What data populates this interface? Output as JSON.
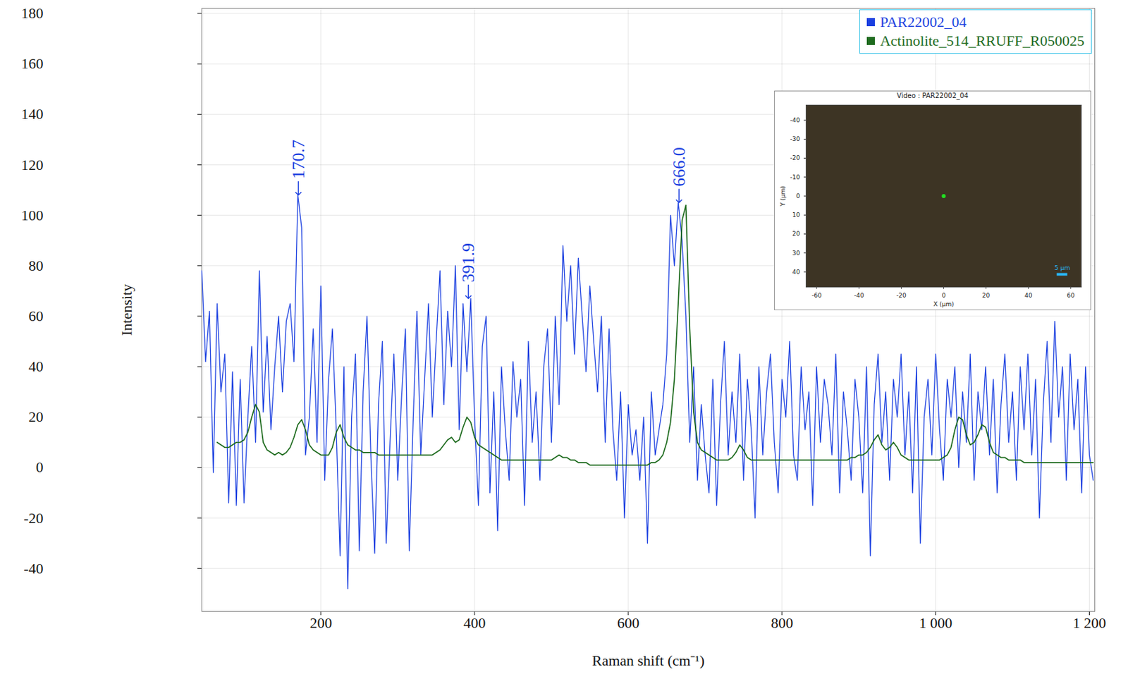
{
  "chart_data": [
    {
      "type": "line",
      "xlabel": "Raman shift (cm⁻¹)",
      "ylabel": "Intensity",
      "x": [
        45,
        50,
        55,
        60,
        65,
        70,
        75,
        80,
        85,
        90,
        95,
        100,
        105,
        110,
        115,
        120,
        125,
        130,
        135,
        140,
        145,
        150,
        155,
        160,
        165,
        170,
        175,
        180,
        185,
        190,
        195,
        200,
        205,
        210,
        215,
        220,
        225,
        230,
        235,
        240,
        245,
        250,
        255,
        260,
        265,
        270,
        275,
        280,
        285,
        290,
        295,
        300,
        305,
        310,
        315,
        320,
        325,
        330,
        335,
        340,
        345,
        350,
        355,
        360,
        365,
        370,
        375,
        380,
        385,
        390,
        395,
        400,
        405,
        410,
        415,
        420,
        425,
        430,
        435,
        440,
        445,
        450,
        455,
        460,
        465,
        470,
        475,
        480,
        485,
        490,
        495,
        500,
        505,
        510,
        515,
        520,
        525,
        530,
        535,
        540,
        545,
        550,
        555,
        560,
        565,
        570,
        575,
        580,
        585,
        590,
        595,
        600,
        605,
        610,
        615,
        620,
        625,
        630,
        635,
        640,
        645,
        650,
        655,
        660,
        665,
        670,
        675,
        680,
        685,
        690,
        695,
        700,
        705,
        710,
        715,
        720,
        725,
        730,
        735,
        740,
        745,
        750,
        755,
        760,
        765,
        770,
        775,
        780,
        785,
        790,
        795,
        800,
        805,
        810,
        815,
        820,
        825,
        830,
        835,
        840,
        845,
        850,
        855,
        860,
        865,
        870,
        875,
        880,
        885,
        890,
        895,
        900,
        905,
        910,
        915,
        920,
        925,
        930,
        935,
        940,
        945,
        950,
        955,
        960,
        965,
        970,
        975,
        980,
        985,
        990,
        995,
        1000,
        1005,
        1010,
        1015,
        1020,
        1025,
        1030,
        1035,
        1040,
        1045,
        1050,
        1055,
        1060,
        1065,
        1070,
        1075,
        1080,
        1085,
        1090,
        1095,
        1100,
        1105,
        1110,
        1115,
        1120,
        1125,
        1130,
        1135,
        1140,
        1145,
        1150,
        1155,
        1160,
        1165,
        1170,
        1175,
        1180,
        1185,
        1190,
        1195,
        1200,
        1205
      ],
      "series": [
        {
          "name": "PAR22002_04",
          "color": "#1a3fe0",
          "values": [
            78,
            42,
            62,
            -2,
            65,
            30,
            45,
            -14,
            38,
            -15,
            35,
            -14,
            20,
            48,
            10,
            78,
            22,
            52,
            15,
            40,
            60,
            30,
            58,
            65,
            42,
            108,
            95,
            5,
            20,
            55,
            10,
            72,
            -5,
            35,
            55,
            15,
            -35,
            40,
            -48,
            20,
            45,
            -33,
            30,
            60,
            5,
            -34,
            25,
            50,
            -30,
            10,
            45,
            -5,
            28,
            55,
            -33,
            18,
            62,
            5,
            35,
            65,
            20,
            50,
            78,
            25,
            62,
            40,
            80,
            15,
            65,
            38,
            67,
            20,
            -15,
            48,
            60,
            -10,
            30,
            -25,
            40,
            15,
            -5,
            42,
            20,
            35,
            -15,
            50,
            10,
            30,
            -5,
            40,
            55,
            10,
            60,
            25,
            88,
            58,
            80,
            45,
            83,
            60,
            38,
            72,
            50,
            30,
            60,
            10,
            55,
            15,
            -5,
            30,
            -20,
            25,
            5,
            15,
            -5,
            20,
            -30,
            30,
            5,
            15,
            25,
            45,
            100,
            80,
            105,
            90,
            60,
            10,
            40,
            -5,
            25,
            5,
            -10,
            35,
            -15,
            25,
            50,
            5,
            30,
            10,
            45,
            -5,
            35,
            15,
            -20,
            40,
            5,
            30,
            45,
            10,
            -10,
            35,
            20,
            50,
            5,
            -5,
            40,
            15,
            30,
            -15,
            40,
            10,
            35,
            25,
            5,
            45,
            -10,
            30,
            15,
            -5,
            35,
            20,
            -10,
            40,
            -35,
            25,
            45,
            10,
            30,
            -5,
            35,
            20,
            45,
            5,
            30,
            -10,
            40,
            -30,
            20,
            35,
            5,
            45,
            15,
            -5,
            35,
            20,
            40,
            0,
            30,
            10,
            45,
            -5,
            30,
            15,
            40,
            5,
            35,
            -10,
            25,
            45,
            10,
            30,
            -5,
            40,
            15,
            45,
            5,
            35,
            -20,
            25,
            50,
            10,
            58,
            20,
            40,
            -5,
            45,
            15,
            35,
            -10,
            40,
            5,
            -5
          ]
        },
        {
          "name": "Actinolite_514_RRUFF_R050025",
          "color": "#1e6b1e",
          "values": [
            null,
            null,
            null,
            null,
            10,
            9,
            8,
            8,
            9,
            10,
            10,
            11,
            14,
            20,
            25,
            22,
            10,
            7,
            6,
            5,
            6,
            5,
            6,
            8,
            12,
            17,
            19,
            15,
            9,
            7,
            6,
            5,
            5,
            5,
            8,
            14,
            17,
            12,
            9,
            8,
            7,
            7,
            6,
            6,
            6,
            6,
            5,
            5,
            5,
            5,
            5,
            5,
            5,
            5,
            5,
            5,
            5,
            5,
            5,
            5,
            5,
            6,
            7,
            9,
            11,
            12,
            10,
            11,
            16,
            20,
            18,
            12,
            9,
            8,
            7,
            6,
            5,
            4,
            3,
            3,
            3,
            3,
            3,
            3,
            3,
            3,
            3,
            3,
            3,
            3,
            3,
            3,
            4,
            5,
            4,
            4,
            3,
            3,
            2,
            2,
            2,
            1,
            1,
            1,
            1,
            1,
            1,
            1,
            1,
            1,
            1,
            1,
            1,
            1,
            1,
            1,
            1,
            2,
            2,
            3,
            5,
            10,
            18,
            35,
            65,
            98,
            104,
            55,
            22,
            10,
            7,
            6,
            5,
            4,
            3,
            3,
            3,
            3,
            4,
            6,
            9,
            7,
            4,
            3,
            3,
            3,
            3,
            3,
            3,
            3,
            3,
            3,
            3,
            3,
            3,
            3,
            3,
            3,
            3,
            3,
            3,
            3,
            3,
            3,
            3,
            3,
            3,
            3,
            3,
            4,
            4,
            5,
            5,
            6,
            8,
            11,
            13,
            9,
            7,
            8,
            10,
            8,
            5,
            4,
            3,
            3,
            3,
            3,
            3,
            3,
            3,
            3,
            3,
            4,
            5,
            8,
            15,
            20,
            19,
            13,
            9,
            10,
            13,
            17,
            16,
            10,
            6,
            5,
            4,
            4,
            3,
            3,
            3,
            3,
            2,
            2,
            2,
            2,
            2,
            2,
            2,
            2,
            2,
            2,
            2,
            2,
            2,
            2,
            2,
            2,
            2,
            2,
            2
          ]
        }
      ],
      "annotations": [
        {
          "x": 170.7,
          "y": 108,
          "label": "170.7"
        },
        {
          "x": 391.9,
          "y": 67,
          "label": "391.9"
        },
        {
          "x": 666.0,
          "y": 105,
          "label": "666.0"
        }
      ],
      "xlim": [
        45,
        1207
      ],
      "xticks": [
        200,
        400,
        600,
        800,
        {
          "value": 1000,
          "label": "1 000"
        },
        {
          "value": 1200,
          "label": "1 200"
        }
      ],
      "ylim": [
        -57,
        182
      ],
      "yticks": [
        -40,
        -20,
        0,
        20,
        40,
        60,
        80,
        100,
        120,
        140,
        160,
        180
      ],
      "grid": true,
      "legend": "top-right"
    },
    {
      "type": "image",
      "title": "Video : PAR22002_04",
      "xlabel": "X (µm)",
      "ylabel": "Y (µm)",
      "xlim": [
        -65,
        65
      ],
      "xticks": [
        -60,
        -40,
        -20,
        0,
        20,
        40,
        60
      ],
      "ylim": [
        -48,
        48
      ],
      "yticks": [
        -40,
        -30,
        -20,
        -10,
        0,
        10,
        20,
        30,
        40
      ],
      "points": [
        {
          "x": 0,
          "y": 0
        }
      ],
      "color": "#22dd22",
      "scale_bar": {
        "length": 5,
        "label": "5 µm"
      }
    }
  ]
}
